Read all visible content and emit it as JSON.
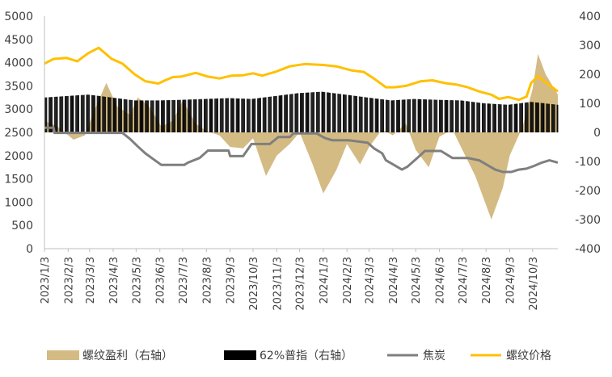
{
  "chart_data": {
    "type": "line",
    "title": "",
    "xlabel": "",
    "ylabel": "",
    "ylim": [
      0,
      5000
    ],
    "ylim_right": [
      -400,
      400
    ],
    "y_ticks_left": [
      0,
      500,
      1000,
      1500,
      2000,
      2500,
      3000,
      3500,
      4000,
      4500,
      5000
    ],
    "y_ticks_right": [
      -400,
      -300,
      -200,
      -100,
      0,
      100,
      200,
      300,
      400
    ],
    "x_ticks": [
      "2023/1/3",
      "2023/2/3",
      "2023/3/3",
      "2023/4/3",
      "2023/5/3",
      "2023/6/3",
      "2023/7/3",
      "2023/8/3",
      "2023/9/3",
      "2023/10/3",
      "2023/11/3",
      "2023/12/3",
      "2024/1/3",
      "2024/2/3",
      "2024/3/3",
      "2024/4/3",
      "2024/5/3",
      "2024/6/3",
      "2024/7/3",
      "2024/8/3",
      "2024/9/3",
      "2024/10/3"
    ],
    "x_end": "2024/11/5",
    "legend_position": "bottom",
    "grid": false,
    "series": [
      {
        "name": "螺纹盈利（右轴）",
        "type": "area",
        "axis": "right",
        "color": "#d4bb84",
        "points": [
          [
            "2023/1/3",
            40
          ],
          [
            "2023/1/20",
            20
          ],
          [
            "2023/2/10",
            -25
          ],
          [
            "2023/2/25",
            -10
          ],
          [
            "2023/3/10",
            80
          ],
          [
            "2023/3/25",
            170
          ],
          [
            "2023/4/8",
            90
          ],
          [
            "2023/4/25",
            60
          ],
          [
            "2023/5/5",
            120
          ],
          [
            "2023/5/20",
            90
          ],
          [
            "2023/6/5",
            20
          ],
          [
            "2023/6/20",
            40
          ],
          [
            "2023/7/3",
            110
          ],
          [
            "2023/7/20",
            30
          ],
          [
            "2023/8/3",
            5
          ],
          [
            "2023/8/20",
            -10
          ],
          [
            "2023/9/3",
            -50
          ],
          [
            "2023/9/20",
            -55
          ],
          [
            "2023/10/3",
            -20
          ],
          [
            "2023/10/20",
            -150
          ],
          [
            "2023/11/3",
            -80
          ],
          [
            "2023/11/20",
            -40
          ],
          [
            "2023/12/3",
            0
          ],
          [
            "2023/12/20",
            -110
          ],
          [
            "2024/1/3",
            -210
          ],
          [
            "2024/1/20",
            -130
          ],
          [
            "2024/2/3",
            -40
          ],
          [
            "2024/2/20",
            -110
          ],
          [
            "2024/3/3",
            -50
          ],
          [
            "2024/3/20",
            10
          ],
          [
            "2024/4/3",
            -10
          ],
          [
            "2024/4/20",
            30
          ],
          [
            "2024/5/3",
            -60
          ],
          [
            "2024/5/20",
            -120
          ],
          [
            "2024/6/3",
            -15
          ],
          [
            "2024/6/20",
            10
          ],
          [
            "2024/7/3",
            -60
          ],
          [
            "2024/7/20",
            -150
          ],
          [
            "2024/8/3",
            -250
          ],
          [
            "2024/8/10",
            -300
          ],
          [
            "2024/8/25",
            -190
          ],
          [
            "2024/9/3",
            -80
          ],
          [
            "2024/9/20",
            20
          ],
          [
            "2024/10/3",
            150
          ],
          [
            "2024/10/10",
            270
          ],
          [
            "2024/10/20",
            200
          ],
          [
            "2024/11/5",
            130
          ]
        ]
      },
      {
        "name": "62%普指（右轴）",
        "type": "bar",
        "axis": "right",
        "color": "#000000",
        "points": [
          [
            "2023/1/3",
            120
          ],
          [
            "2023/2/1",
            125
          ],
          [
            "2023/3/1",
            130
          ],
          [
            "2023/4/1",
            120
          ],
          [
            "2023/5/1",
            110
          ],
          [
            "2023/6/1",
            110
          ],
          [
            "2023/7/1",
            112
          ],
          [
            "2023/8/1",
            115
          ],
          [
            "2023/9/1",
            118
          ],
          [
            "2023/10/1",
            115
          ],
          [
            "2023/11/1",
            125
          ],
          [
            "2023/12/1",
            135
          ],
          [
            "2024/1/1",
            140
          ],
          [
            "2024/2/1",
            130
          ],
          [
            "2024/3/1",
            120
          ],
          [
            "2024/4/1",
            110
          ],
          [
            "2024/5/1",
            115
          ],
          [
            "2024/6/1",
            112
          ],
          [
            "2024/7/1",
            110
          ],
          [
            "2024/8/1",
            100
          ],
          [
            "2024/9/1",
            95
          ],
          [
            "2024/10/1",
            105
          ],
          [
            "2024/11/5",
            95
          ]
        ]
      },
      {
        "name": "焦炭",
        "type": "line",
        "axis": "left",
        "color": "#7f7f7f",
        "points": [
          [
            "2023/1/3",
            2600
          ],
          [
            "2023/1/15",
            2600
          ],
          [
            "2023/1/16",
            2490
          ],
          [
            "2023/4/15",
            2490
          ],
          [
            "2023/4/25",
            2360
          ],
          [
            "2023/5/5",
            2200
          ],
          [
            "2023/5/15",
            2050
          ],
          [
            "2023/5/25",
            1930
          ],
          [
            "2023/6/5",
            1800
          ],
          [
            "2023/7/5",
            1800
          ],
          [
            "2023/7/10",
            1850
          ],
          [
            "2023/7/25",
            1950
          ],
          [
            "2023/8/5",
            2110
          ],
          [
            "2023/9/1",
            2110
          ],
          [
            "2023/9/3",
            1990
          ],
          [
            "2023/9/20",
            1990
          ],
          [
            "2023/10/1",
            2250
          ],
          [
            "2023/10/25",
            2250
          ],
          [
            "2023/11/5",
            2400
          ],
          [
            "2023/11/20",
            2400
          ],
          [
            "2023/11/25",
            2480
          ],
          [
            "2023/12/25",
            2480
          ],
          [
            "2024/1/5",
            2380
          ],
          [
            "2024/1/15",
            2330
          ],
          [
            "2024/2/5",
            2330
          ],
          [
            "2024/3/1",
            2280
          ],
          [
            "2024/3/10",
            2150
          ],
          [
            "2024/3/20",
            2050
          ],
          [
            "2024/3/25",
            1900
          ],
          [
            "2024/4/15",
            1700
          ],
          [
            "2024/4/22",
            1760
          ],
          [
            "2024/5/5",
            1950
          ],
          [
            "2024/5/15",
            2100
          ],
          [
            "2024/6/5",
            2100
          ],
          [
            "2024/6/20",
            1950
          ],
          [
            "2024/7/10",
            1950
          ],
          [
            "2024/7/25",
            1900
          ],
          [
            "2024/8/15",
            1700
          ],
          [
            "2024/8/25",
            1650
          ],
          [
            "2024/9/5",
            1650
          ],
          [
            "2024/9/15",
            1700
          ],
          [
            "2024/9/25",
            1720
          ],
          [
            "2024/10/5",
            1780
          ],
          [
            "2024/10/15",
            1850
          ],
          [
            "2024/10/25",
            1900
          ],
          [
            "2024/11/5",
            1850
          ]
        ]
      },
      {
        "name": "螺纹价格",
        "type": "line",
        "axis": "left",
        "color": "#ffc000",
        "points": [
          [
            "2023/1/3",
            3980
          ],
          [
            "2023/1/15",
            4080
          ],
          [
            "2023/2/1",
            4100
          ],
          [
            "2023/2/15",
            4030
          ],
          [
            "2023/3/1",
            4200
          ],
          [
            "2023/3/15",
            4320
          ],
          [
            "2023/4/1",
            4080
          ],
          [
            "2023/4/15",
            3980
          ],
          [
            "2023/5/1",
            3750
          ],
          [
            "2023/5/15",
            3600
          ],
          [
            "2023/6/1",
            3550
          ],
          [
            "2023/6/10",
            3620
          ],
          [
            "2023/6/20",
            3690
          ],
          [
            "2023/7/1",
            3700
          ],
          [
            "2023/7/20",
            3780
          ],
          [
            "2023/8/5",
            3700
          ],
          [
            "2023/8/20",
            3660
          ],
          [
            "2023/9/5",
            3720
          ],
          [
            "2023/9/20",
            3730
          ],
          [
            "2023/10/3",
            3770
          ],
          [
            "2023/10/15",
            3720
          ],
          [
            "2023/11/1",
            3800
          ],
          [
            "2023/11/20",
            3920
          ],
          [
            "2023/12/10",
            3970
          ],
          [
            "2024/1/3",
            3950
          ],
          [
            "2024/1/20",
            3920
          ],
          [
            "2024/2/10",
            3830
          ],
          [
            "2024/2/25",
            3800
          ],
          [
            "2024/3/10",
            3650
          ],
          [
            "2024/3/25",
            3470
          ],
          [
            "2024/4/5",
            3470
          ],
          [
            "2024/4/20",
            3500
          ],
          [
            "2024/5/10",
            3600
          ],
          [
            "2024/5/25",
            3620
          ],
          [
            "2024/6/10",
            3560
          ],
          [
            "2024/6/25",
            3530
          ],
          [
            "2024/7/10",
            3470
          ],
          [
            "2024/7/25",
            3380
          ],
          [
            "2024/8/10",
            3310
          ],
          [
            "2024/8/20",
            3220
          ],
          [
            "2024/9/1",
            3260
          ],
          [
            "2024/9/15",
            3200
          ],
          [
            "2024/9/25",
            3270
          ],
          [
            "2024/10/1",
            3560
          ],
          [
            "2024/10/10",
            3710
          ],
          [
            "2024/10/20",
            3580
          ],
          [
            "2024/11/5",
            3380
          ]
        ]
      }
    ]
  }
}
